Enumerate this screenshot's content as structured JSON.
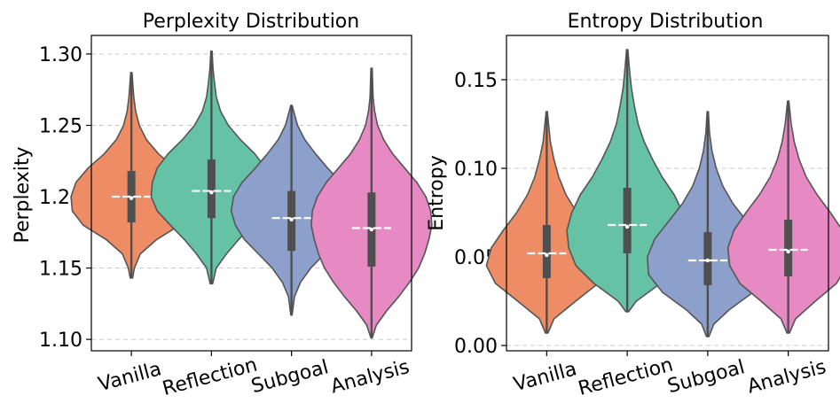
{
  "chart_data": [
    {
      "type": "violin",
      "title": "Perplexity Distribution",
      "xlabel": "",
      "ylabel": "Perplexity",
      "ylim": [
        1.092,
        1.313
      ],
      "yticks": [
        1.1,
        1.15,
        1.2,
        1.25,
        1.3
      ],
      "ytick_labels": [
        "1.10",
        "1.15",
        "1.20",
        "1.25",
        "1.30"
      ],
      "grid": "horizontal dashed",
      "categories": [
        "Vanilla",
        "Reflection",
        "Subgoal",
        "Analysis"
      ],
      "colors": [
        "#ee8c65",
        "#66c2a5",
        "#8da0cb",
        "#e78ac3"
      ],
      "series": [
        {
          "name": "Vanilla",
          "min": 1.143,
          "q1": 1.182,
          "median": 1.199,
          "mean": 1.2,
          "q3": 1.218,
          "max": 1.287,
          "density": [
            [
              1.143,
              0.02
            ],
            [
              1.15,
              0.05
            ],
            [
              1.16,
              0.15
            ],
            [
              1.17,
              0.42
            ],
            [
              1.18,
              0.8
            ],
            [
              1.19,
              0.98
            ],
            [
              1.2,
              1.0
            ],
            [
              1.21,
              0.92
            ],
            [
              1.22,
              0.72
            ],
            [
              1.23,
              0.45
            ],
            [
              1.24,
              0.25
            ],
            [
              1.25,
              0.13
            ],
            [
              1.26,
              0.07
            ],
            [
              1.27,
              0.04
            ],
            [
              1.287,
              0.01
            ]
          ]
        },
        {
          "name": "Reflection",
          "min": 1.139,
          "q1": 1.185,
          "median": 1.203,
          "mean": 1.204,
          "q3": 1.226,
          "max": 1.302,
          "density": [
            [
              1.139,
              0.02
            ],
            [
              1.15,
              0.08
            ],
            [
              1.16,
              0.25
            ],
            [
              1.17,
              0.45
            ],
            [
              1.18,
              0.68
            ],
            [
              1.19,
              0.9
            ],
            [
              1.2,
              1.0
            ],
            [
              1.21,
              0.98
            ],
            [
              1.22,
              0.9
            ],
            [
              1.23,
              0.72
            ],
            [
              1.24,
              0.48
            ],
            [
              1.25,
              0.28
            ],
            [
              1.26,
              0.15
            ],
            [
              1.27,
              0.08
            ],
            [
              1.28,
              0.05
            ],
            [
              1.29,
              0.025
            ],
            [
              1.302,
              0.01
            ]
          ]
        },
        {
          "name": "Subgoal",
          "min": 1.117,
          "q1": 1.162,
          "median": 1.184,
          "mean": 1.185,
          "q3": 1.204,
          "max": 1.264,
          "density": [
            [
              1.117,
              0.01
            ],
            [
              1.13,
              0.05
            ],
            [
              1.14,
              0.15
            ],
            [
              1.15,
              0.32
            ],
            [
              1.16,
              0.55
            ],
            [
              1.17,
              0.78
            ],
            [
              1.18,
              0.93
            ],
            [
              1.19,
              1.0
            ],
            [
              1.2,
              0.96
            ],
            [
              1.21,
              0.82
            ],
            [
              1.22,
              0.6
            ],
            [
              1.23,
              0.4
            ],
            [
              1.24,
              0.22
            ],
            [
              1.25,
              0.1
            ],
            [
              1.264,
              0.01
            ]
          ]
        },
        {
          "name": "Analysis",
          "min": 1.101,
          "q1": 1.151,
          "median": 1.177,
          "mean": 1.178,
          "q3": 1.203,
          "max": 1.29,
          "density": [
            [
              1.101,
              0.01
            ],
            [
              1.11,
              0.08
            ],
            [
              1.12,
              0.25
            ],
            [
              1.13,
              0.45
            ],
            [
              1.14,
              0.63
            ],
            [
              1.15,
              0.78
            ],
            [
              1.16,
              0.88
            ],
            [
              1.17,
              0.95
            ],
            [
              1.18,
              1.0
            ],
            [
              1.19,
              0.98
            ],
            [
              1.2,
              0.9
            ],
            [
              1.21,
              0.75
            ],
            [
              1.22,
              0.55
            ],
            [
              1.23,
              0.35
            ],
            [
              1.24,
              0.2
            ],
            [
              1.25,
              0.1
            ],
            [
              1.26,
              0.05
            ],
            [
              1.27,
              0.025
            ],
            [
              1.29,
              0.01
            ]
          ]
        }
      ]
    },
    {
      "type": "violin",
      "title": "Entropy Distribution",
      "xlabel": "",
      "ylabel": "Entropy",
      "ylim": [
        -0.003,
        0.175
      ],
      "yticks": [
        0.0,
        0.05,
        0.1,
        0.15
      ],
      "ytick_labels": [
        "0.00",
        "0.05",
        "0.10",
        "0.15"
      ],
      "grid": "horizontal dashed",
      "categories": [
        "Vanilla",
        "Reflection",
        "Subgoal",
        "Analysis"
      ],
      "colors": [
        "#ee8c65",
        "#66c2a5",
        "#8da0cb",
        "#e78ac3"
      ],
      "series": [
        {
          "name": "Vanilla",
          "min": 0.007,
          "q1": 0.038,
          "median": 0.051,
          "mean": 0.052,
          "q3": 0.068,
          "max": 0.132,
          "density": [
            [
              0.007,
              0.02
            ],
            [
              0.015,
              0.12
            ],
            [
              0.025,
              0.48
            ],
            [
              0.035,
              0.85
            ],
            [
              0.045,
              1.0
            ],
            [
              0.055,
              0.92
            ],
            [
              0.065,
              0.72
            ],
            [
              0.075,
              0.5
            ],
            [
              0.085,
              0.32
            ],
            [
              0.095,
              0.2
            ],
            [
              0.105,
              0.12
            ],
            [
              0.115,
              0.06
            ],
            [
              0.125,
              0.03
            ],
            [
              0.132,
              0.01
            ]
          ]
        },
        {
          "name": "Reflection",
          "min": 0.019,
          "q1": 0.052,
          "median": 0.067,
          "mean": 0.068,
          "q3": 0.089,
          "max": 0.167,
          "density": [
            [
              0.019,
              0.02
            ],
            [
              0.025,
              0.15
            ],
            [
              0.035,
              0.55
            ],
            [
              0.045,
              0.85
            ],
            [
              0.055,
              0.97
            ],
            [
              0.065,
              1.0
            ],
            [
              0.075,
              0.92
            ],
            [
              0.085,
              0.78
            ],
            [
              0.095,
              0.58
            ],
            [
              0.105,
              0.42
            ],
            [
              0.115,
              0.28
            ],
            [
              0.125,
              0.18
            ],
            [
              0.135,
              0.12
            ],
            [
              0.145,
              0.07
            ],
            [
              0.155,
              0.04
            ],
            [
              0.167,
              0.01
            ]
          ]
        },
        {
          "name": "Subgoal",
          "min": 0.005,
          "q1": 0.034,
          "median": 0.048,
          "mean": 0.048,
          "q3": 0.064,
          "max": 0.132,
          "density": [
            [
              0.005,
              0.02
            ],
            [
              0.012,
              0.1
            ],
            [
              0.02,
              0.35
            ],
            [
              0.03,
              0.75
            ],
            [
              0.04,
              0.98
            ],
            [
              0.05,
              1.0
            ],
            [
              0.06,
              0.88
            ],
            [
              0.07,
              0.65
            ],
            [
              0.08,
              0.42
            ],
            [
              0.09,
              0.25
            ],
            [
              0.1,
              0.14
            ],
            [
              0.11,
              0.07
            ],
            [
              0.12,
              0.03
            ],
            [
              0.132,
              0.01
            ]
          ]
        },
        {
          "name": "Analysis",
          "min": 0.007,
          "q1": 0.039,
          "median": 0.053,
          "mean": 0.054,
          "q3": 0.071,
          "max": 0.138,
          "density": [
            [
              0.007,
              0.02
            ],
            [
              0.015,
              0.12
            ],
            [
              0.025,
              0.45
            ],
            [
              0.035,
              0.8
            ],
            [
              0.045,
              0.97
            ],
            [
              0.055,
              1.0
            ],
            [
              0.065,
              0.9
            ],
            [
              0.075,
              0.7
            ],
            [
              0.085,
              0.48
            ],
            [
              0.095,
              0.3
            ],
            [
              0.105,
              0.18
            ],
            [
              0.115,
              0.1
            ],
            [
              0.125,
              0.05
            ],
            [
              0.138,
              0.01
            ]
          ]
        }
      ]
    }
  ]
}
